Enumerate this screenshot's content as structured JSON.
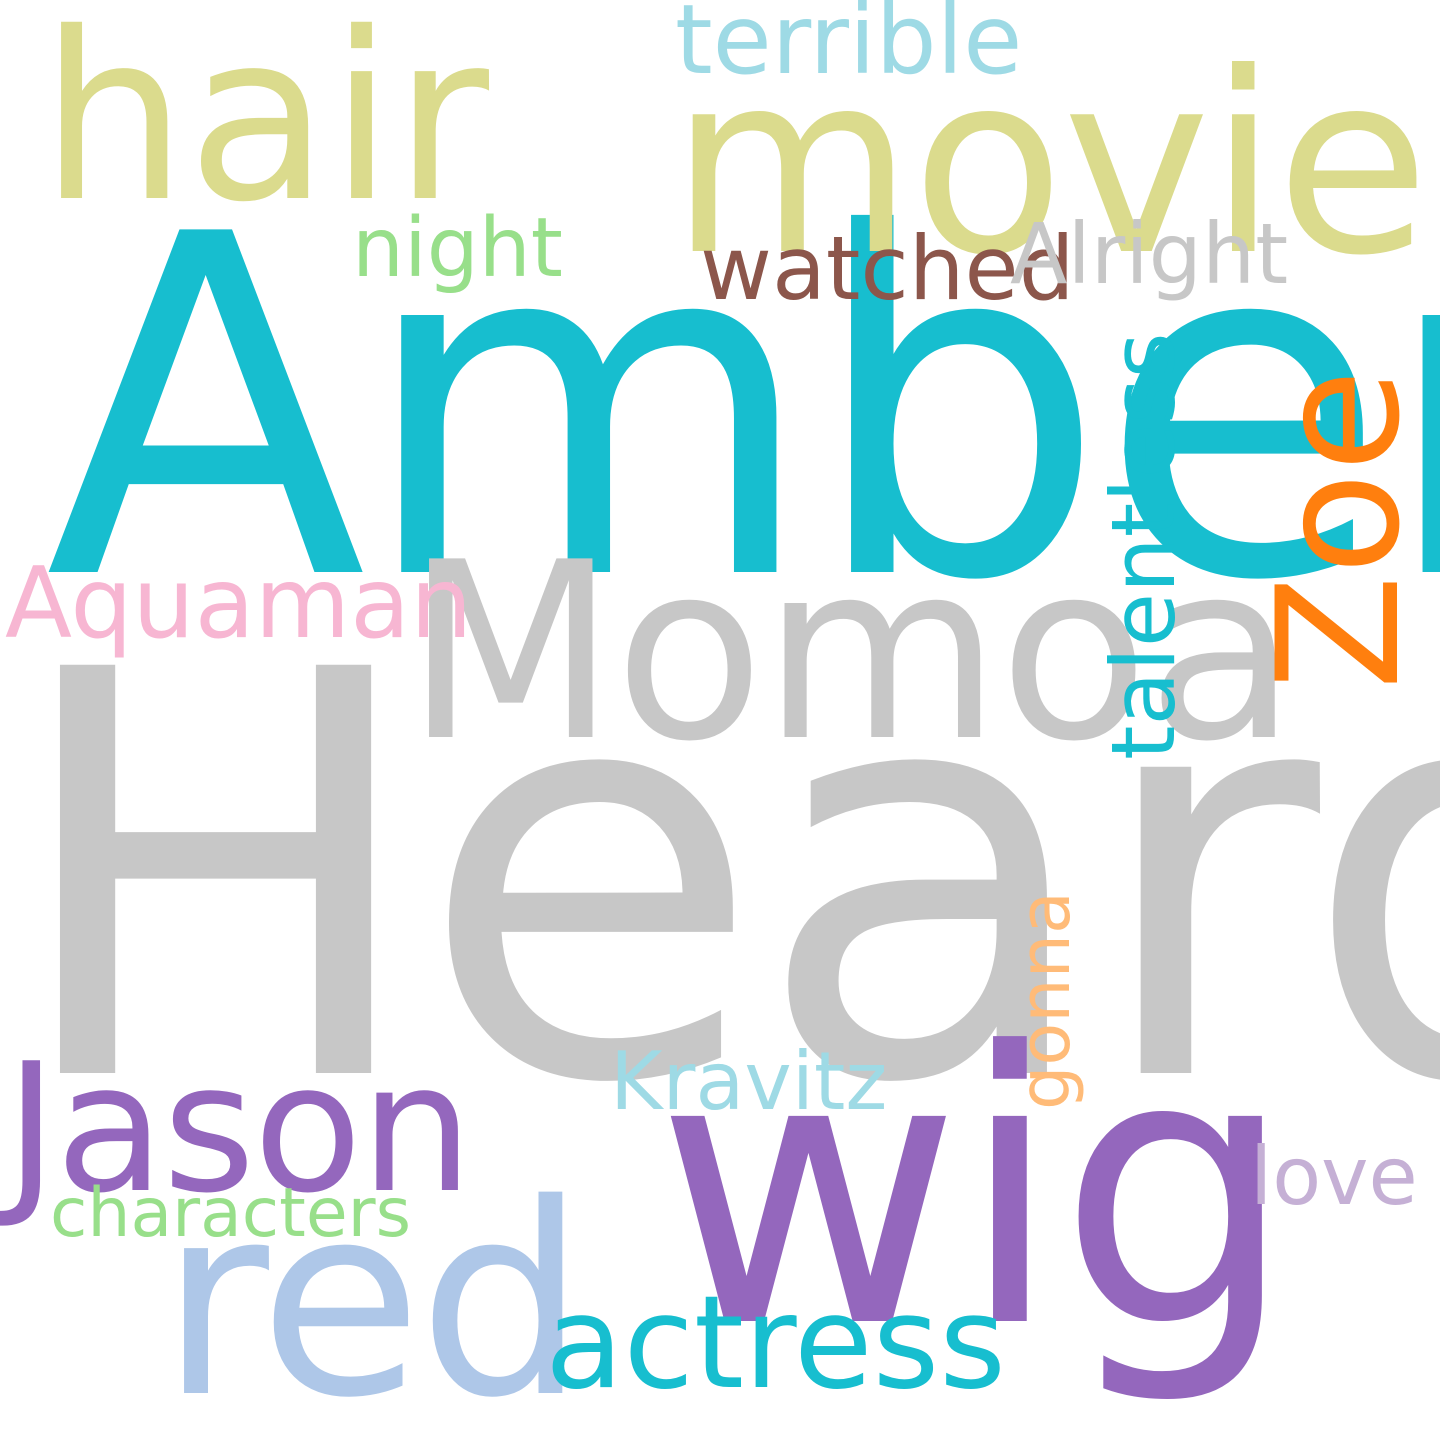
{
  "word_cloud": {
    "background": "#ffffff",
    "words": [
      {
        "key": "heard",
        "text": "Heard",
        "color": "#c7c7c7",
        "orientation": "horizontal"
      },
      {
        "key": "amber",
        "text": "Amber",
        "color": "#17becf",
        "orientation": "horizontal"
      },
      {
        "key": "wig",
        "text": "wig",
        "color": "#9467bd",
        "orientation": "horizontal"
      },
      {
        "key": "momoa",
        "text": "Momoa",
        "color": "#c7c7c7",
        "orientation": "horizontal"
      },
      {
        "key": "movie",
        "text": "movie",
        "color": "#dbdb8d",
        "orientation": "horizontal"
      },
      {
        "key": "hair",
        "text": "hair",
        "color": "#dbdb8d",
        "orientation": "horizontal"
      },
      {
        "key": "red",
        "text": "red",
        "color": "#aec7e8",
        "orientation": "horizontal"
      },
      {
        "key": "jason",
        "text": "Jason",
        "color": "#9467bd",
        "orientation": "horizontal"
      },
      {
        "key": "actress",
        "text": "actress",
        "color": "#17becf",
        "orientation": "horizontal"
      },
      {
        "key": "zoe",
        "text": "Zoe",
        "color": "#ff7f0e",
        "orientation": "vertical"
      },
      {
        "key": "terrible",
        "text": "terrible",
        "color": "#9edae5",
        "orientation": "horizontal"
      },
      {
        "key": "aquaman",
        "text": "Aquaman",
        "color": "#f7b6d2",
        "orientation": "horizontal"
      },
      {
        "key": "talentless",
        "text": "talentless",
        "color": "#17becf",
        "orientation": "vertical"
      },
      {
        "key": "watched",
        "text": "watched",
        "color": "#8c564b",
        "orientation": "horizontal"
      },
      {
        "key": "alright",
        "text": "Alright",
        "color": "#c7c7c7",
        "orientation": "horizontal"
      },
      {
        "key": "night",
        "text": "night",
        "color": "#98df8a",
        "orientation": "horizontal"
      },
      {
        "key": "kravitz",
        "text": "Kravitz",
        "color": "#9edae5",
        "orientation": "horizontal"
      },
      {
        "key": "characters",
        "text": "characters",
        "color": "#98df8a",
        "orientation": "horizontal"
      },
      {
        "key": "gonna",
        "text": "gonna",
        "color": "#ffbb78",
        "orientation": "vertical"
      },
      {
        "key": "love",
        "text": "love",
        "color": "#c5b0d5",
        "orientation": "horizontal"
      }
    ]
  }
}
